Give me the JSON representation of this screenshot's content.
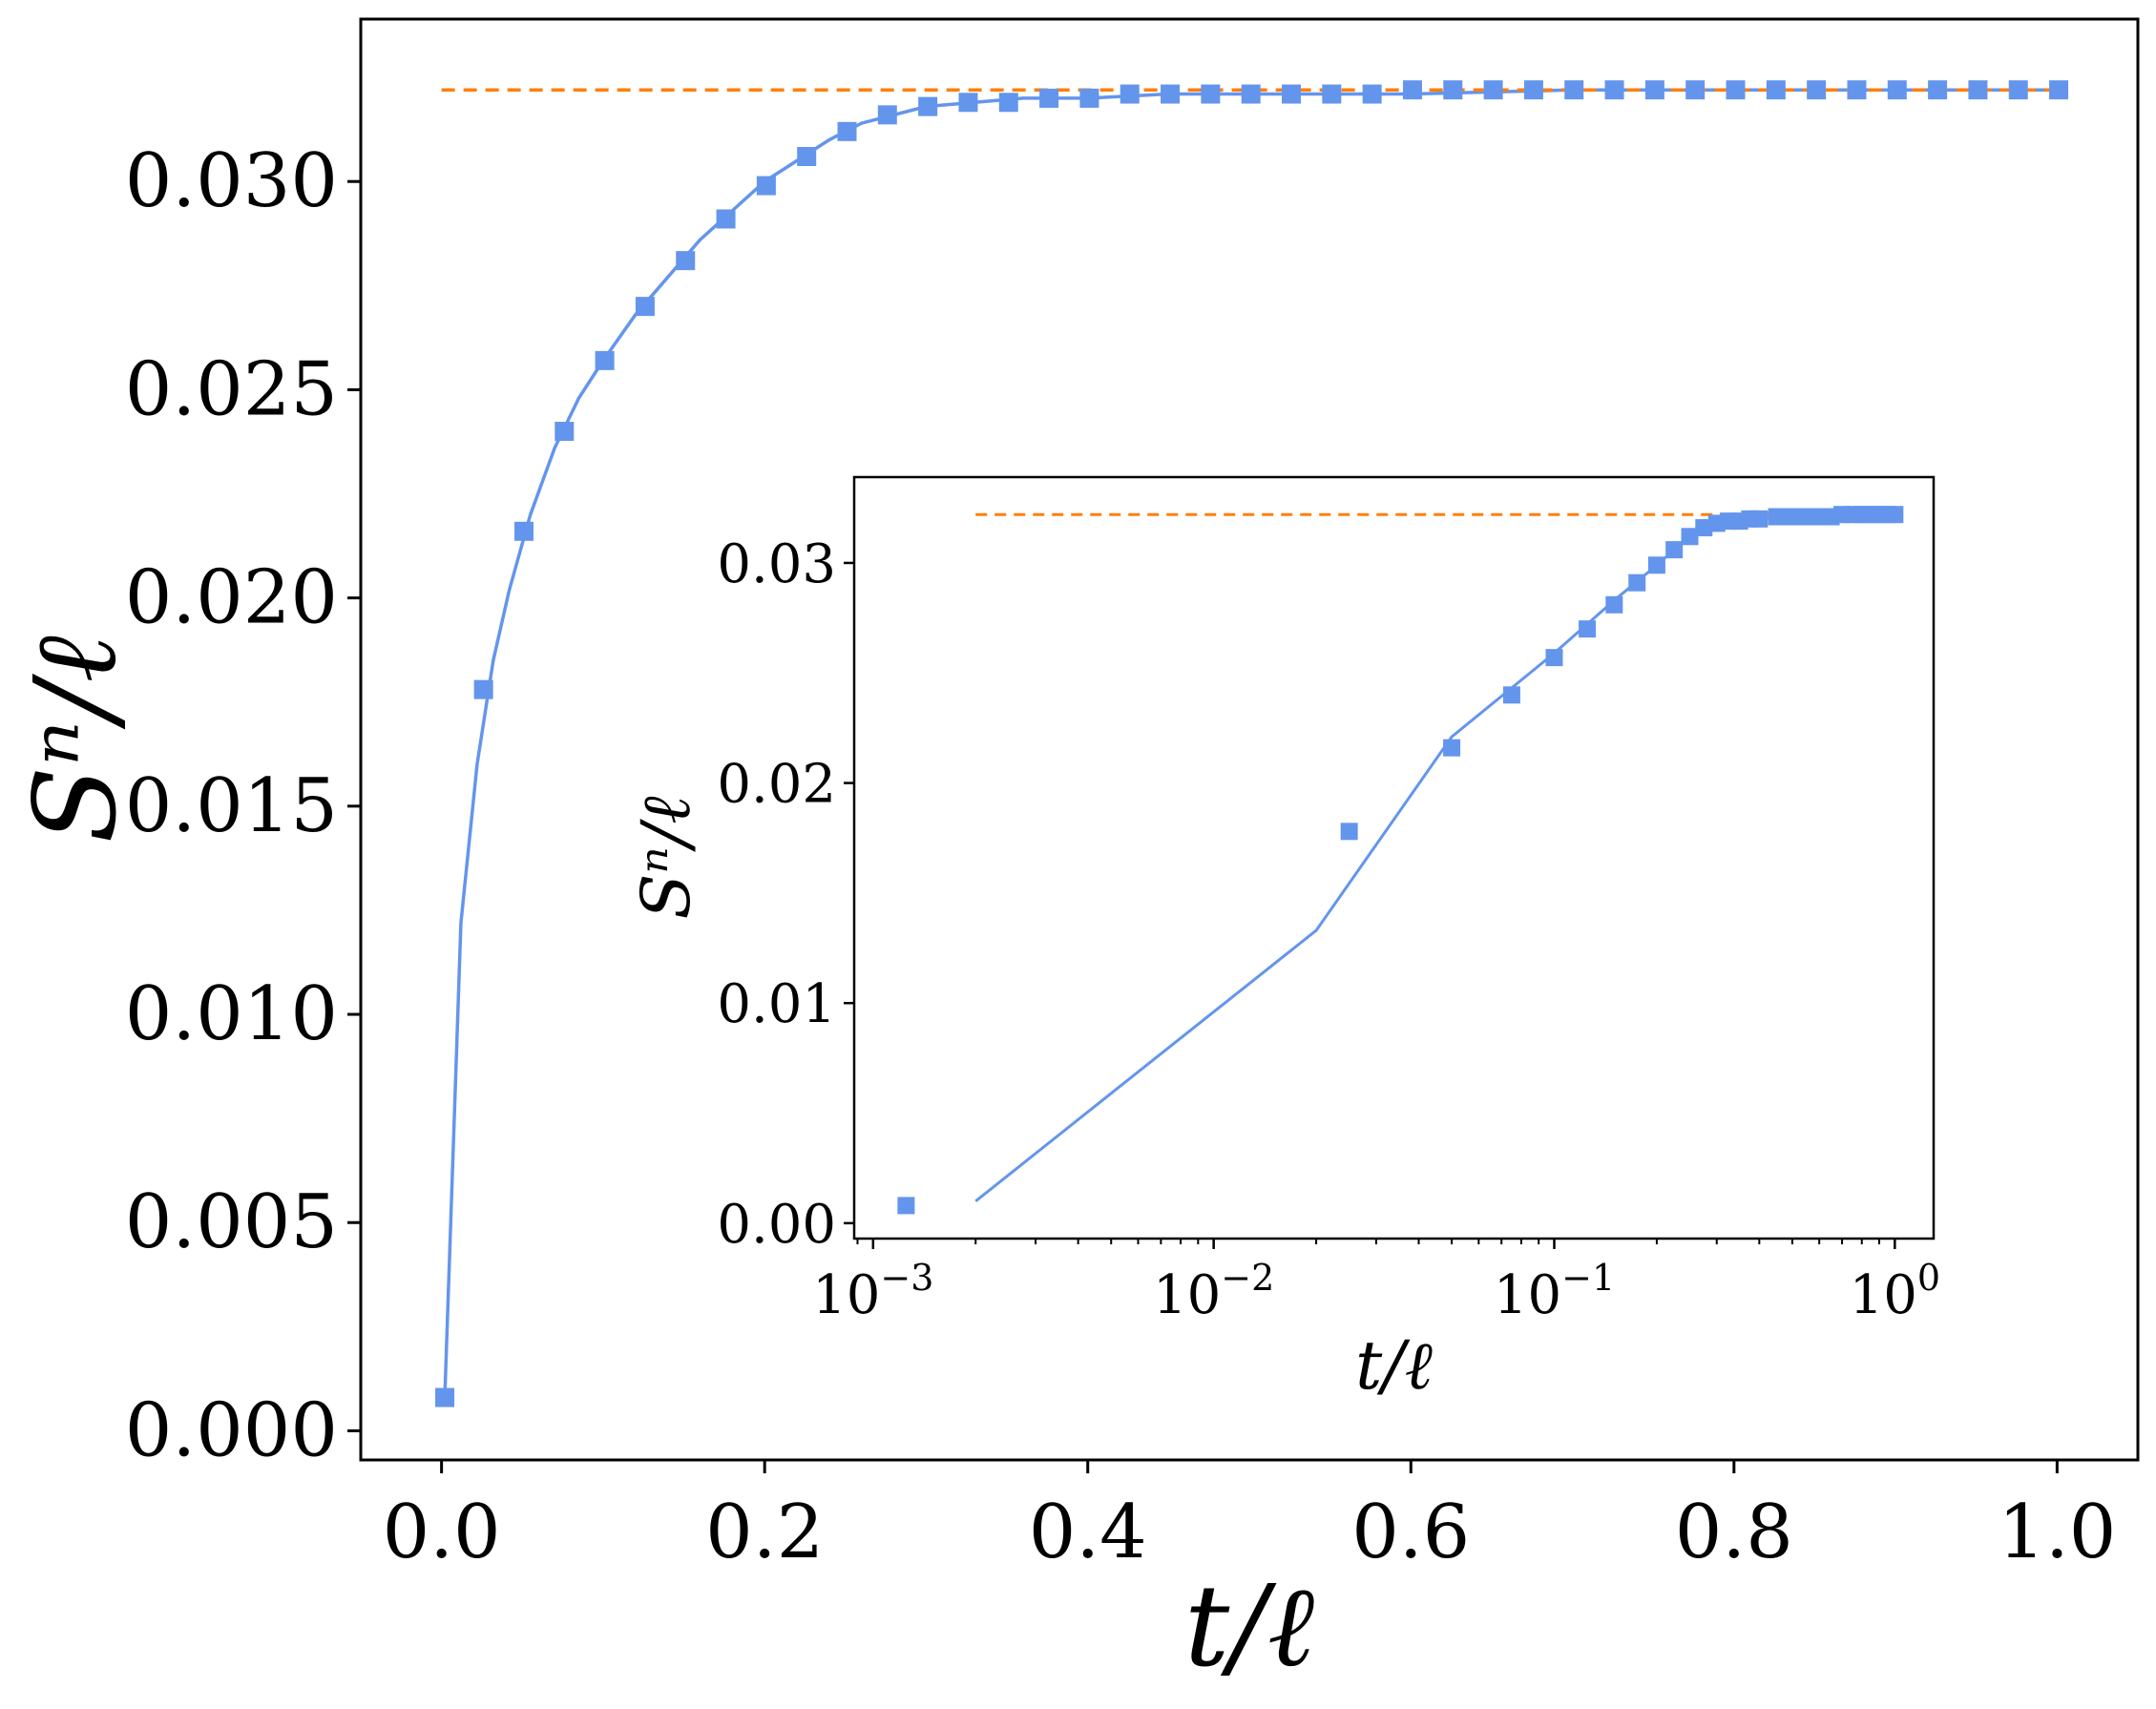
{
  "chart_data": [
    {
      "type": "line",
      "xlabel": "t/ℓ",
      "ylabel": "Sⁿ/ℓ",
      "xscale": "linear",
      "xlim": [
        -0.05,
        1.05
      ],
      "ylim": [
        -0.0007,
        0.0339
      ],
      "xticks": [
        0.0,
        0.2,
        0.4,
        0.6,
        0.8,
        1.0
      ],
      "xtick_labels": [
        "0.0",
        "0.2",
        "0.4",
        "0.6",
        "0.8",
        "1.0"
      ],
      "yticks": [
        0.0,
        0.005,
        0.01,
        0.015,
        0.02,
        0.025,
        0.03
      ],
      "ytick_labels": [
        "0.000",
        "0.005",
        "0.010",
        "0.015",
        "0.020",
        "0.025",
        "0.030"
      ],
      "grid": false,
      "legend": "none",
      "saturation_level": 0.0322,
      "saturation_x": [
        0.0,
        1.0
      ],
      "series": [
        {
          "style": "markers",
          "marker": "square",
          "color": "#6495ed",
          "x": [
            0.002,
            0.026,
            0.051,
            0.076,
            0.101,
            0.126,
            0.151,
            0.176,
            0.201,
            0.226,
            0.251,
            0.276,
            0.301,
            0.326,
            0.351,
            0.376,
            0.401,
            0.426,
            0.451,
            0.476,
            0.501,
            0.526,
            0.551,
            0.576,
            0.601,
            0.626,
            0.651,
            0.676,
            0.701,
            0.726,
            0.751,
            0.776,
            0.801,
            0.826,
            0.851,
            0.876,
            0.901,
            0.926,
            0.951,
            0.976,
            1.001
          ],
          "y": [
            0.0008,
            0.0178,
            0.0216,
            0.024,
            0.0257,
            0.027,
            0.0281,
            0.0291,
            0.0299,
            0.0306,
            0.0312,
            0.0316,
            0.0318,
            0.0319,
            0.0319,
            0.032,
            0.032,
            0.0321,
            0.0321,
            0.0321,
            0.0321,
            0.0321,
            0.0321,
            0.0321,
            0.0322,
            0.0322,
            0.0322,
            0.0322,
            0.0322,
            0.0322,
            0.0322,
            0.0322,
            0.0322,
            0.0322,
            0.0322,
            0.0322,
            0.0322,
            0.0322,
            0.0322,
            0.0322,
            0.0322
          ]
        },
        {
          "style": "line",
          "color": "#6495ed",
          "x": [
            0.002,
            0.012,
            0.022,
            0.032,
            0.042,
            0.055,
            0.07,
            0.085,
            0.1,
            0.12,
            0.14,
            0.16,
            0.18,
            0.2,
            0.22,
            0.24,
            0.26,
            0.28,
            0.3,
            0.33,
            0.36,
            0.4,
            0.45,
            0.5,
            0.6,
            0.7,
            0.8,
            0.9,
            1.0
          ],
          "y": [
            0.0008,
            0.0122,
            0.016,
            0.0185,
            0.0202,
            0.022,
            0.0236,
            0.0248,
            0.0257,
            0.0268,
            0.0277,
            0.0286,
            0.0293,
            0.03,
            0.0305,
            0.031,
            0.0314,
            0.0316,
            0.0318,
            0.0319,
            0.032,
            0.032,
            0.0321,
            0.0321,
            0.0321,
            0.0322,
            0.0322,
            0.0322,
            0.0322
          ]
        },
        {
          "style": "dashed",
          "color": "#ff7f0e",
          "x": [
            0.0,
            1.0
          ],
          "y": [
            0.0322,
            0.0322
          ]
        }
      ]
    },
    {
      "type": "line",
      "xlabel": "t/ℓ",
      "ylabel": "Sⁿ/ℓ",
      "xscale": "log",
      "xlim": [
        0.00088,
        1.3
      ],
      "ylim": [
        -0.0007,
        0.0339
      ],
      "xticks": [
        0.001,
        0.01,
        0.1,
        1
      ],
      "xtick_labels": [
        {
          "base": "10",
          "exp": "−3"
        },
        {
          "base": "10",
          "exp": "−2"
        },
        {
          "base": "10",
          "exp": "−1"
        },
        {
          "base": "10",
          "exp": "0"
        }
      ],
      "yticks": [
        0.0,
        0.01,
        0.02,
        0.03
      ],
      "ytick_labels": [
        "0.00",
        "0.01",
        "0.02",
        "0.03"
      ],
      "grid": false,
      "legend": "none",
      "saturation_level": 0.0322,
      "saturation_x": [
        0.002,
        1.0
      ],
      "series": [
        {
          "style": "markers",
          "marker": "square",
          "color": "#6495ed",
          "x": [
            0.00125,
            0.025,
            0.05,
            0.075,
            0.1,
            0.125,
            0.15,
            0.175,
            0.2,
            0.225,
            0.25,
            0.275,
            0.3,
            0.325,
            0.35,
            0.375,
            0.4,
            0.45,
            0.5,
            0.55,
            0.6,
            0.65,
            0.7,
            0.75,
            0.8,
            0.85,
            0.9,
            0.95,
            1.0
          ],
          "y": [
            0.0008,
            0.0178,
            0.0216,
            0.024,
            0.0257,
            0.027,
            0.0281,
            0.0291,
            0.0299,
            0.0306,
            0.0312,
            0.0316,
            0.0318,
            0.0319,
            0.0319,
            0.032,
            0.032,
            0.0321,
            0.0321,
            0.0321,
            0.0321,
            0.0321,
            0.0322,
            0.0322,
            0.0322,
            0.0322,
            0.0322,
            0.0322,
            0.0322
          ]
        },
        {
          "style": "line",
          "color": "#6495ed",
          "x": [
            0.002,
            0.005,
            0.01,
            0.02,
            0.05,
            0.1,
            0.15,
            0.2,
            0.25,
            0.3,
            0.4,
            0.5,
            0.7,
            1.0
          ],
          "y": [
            0.001,
            0.0059,
            0.0096,
            0.0133,
            0.0221,
            0.0259,
            0.0283,
            0.0299,
            0.0312,
            0.0317,
            0.032,
            0.0321,
            0.0322,
            0.0322
          ]
        },
        {
          "style": "dashed",
          "color": "#ff7f0e",
          "x": [
            0.002,
            1.0
          ],
          "y": [
            0.0322,
            0.0322
          ]
        }
      ]
    }
  ]
}
